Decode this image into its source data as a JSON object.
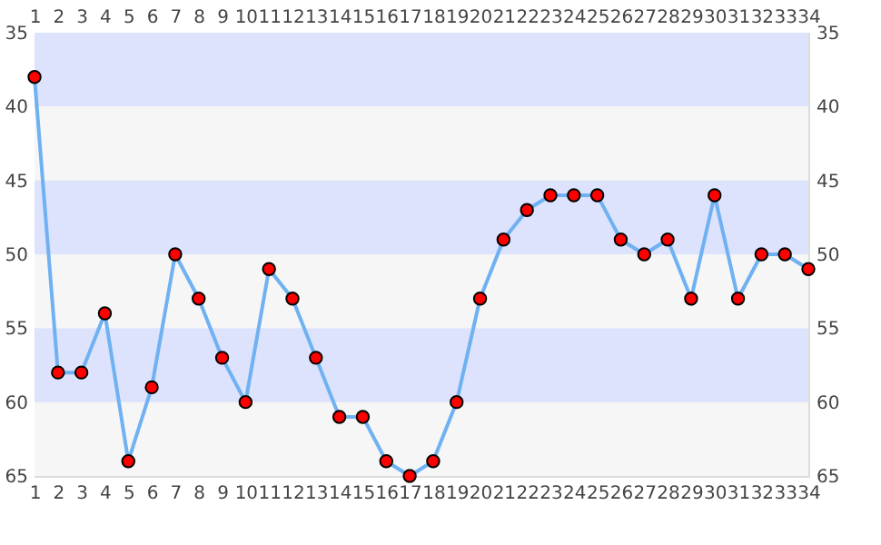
{
  "chart_data": {
    "type": "line",
    "x": [
      1,
      2,
      3,
      4,
      5,
      6,
      7,
      8,
      9,
      10,
      11,
      12,
      13,
      14,
      15,
      16,
      17,
      18,
      19,
      20,
      21,
      22,
      23,
      24,
      25,
      26,
      27,
      28,
      29,
      30,
      31,
      32,
      33,
      34
    ],
    "series": [
      {
        "color": "#6fb1f2",
        "values": [
          38,
          58,
          58,
          54,
          64,
          59,
          50,
          53,
          57,
          60,
          51,
          53,
          57,
          61,
          61,
          64,
          65,
          64,
          60,
          53,
          49,
          47,
          46,
          46,
          46,
          49,
          50,
          49,
          53,
          46,
          53,
          50,
          50,
          51
        ]
      }
    ],
    "xlim": [
      1,
      34
    ],
    "xticks": [
      1,
      2,
      3,
      4,
      5,
      6,
      7,
      8,
      9,
      10,
      11,
      12,
      13,
      14,
      15,
      16,
      17,
      18,
      19,
      20,
      21,
      22,
      23,
      24,
      25,
      26,
      27,
      28,
      29,
      30,
      31,
      32,
      33,
      34
    ],
    "x2lim": [
      1,
      34
    ],
    "x2ticks": [
      1,
      2,
      3,
      4,
      5,
      6,
      7,
      8,
      9,
      10,
      11,
      12,
      13,
      14,
      15,
      16,
      17,
      18,
      19,
      20,
      21,
      22,
      23,
      24,
      25,
      26,
      27,
      28,
      29,
      30,
      31,
      32,
      33,
      34
    ],
    "ylim": [
      65,
      35
    ],
    "yticks": [
      35,
      40,
      45,
      50,
      55,
      60,
      65
    ],
    "y2lim": [
      65,
      35
    ],
    "y2ticks": [
      35,
      40,
      45,
      50,
      55,
      60,
      65
    ],
    "bands": [
      {
        "axis": "y",
        "from": 35,
        "to": 40,
        "color": "#dde3fd"
      },
      {
        "axis": "y",
        "from": 40,
        "to": 45,
        "color": "#f6f6f6"
      },
      {
        "axis": "y",
        "from": 45,
        "to": 50,
        "color": "#dde3fd"
      },
      {
        "axis": "y",
        "from": 50,
        "to": 55,
        "color": "#f6f6f6"
      },
      {
        "axis": "y",
        "from": 55,
        "to": 60,
        "color": "#dde3fd"
      },
      {
        "axis": "y",
        "from": 60,
        "to": 65,
        "color": "#f6f6f6"
      }
    ],
    "grid": "y",
    "marker": "circle",
    "line_style": "solid"
  }
}
